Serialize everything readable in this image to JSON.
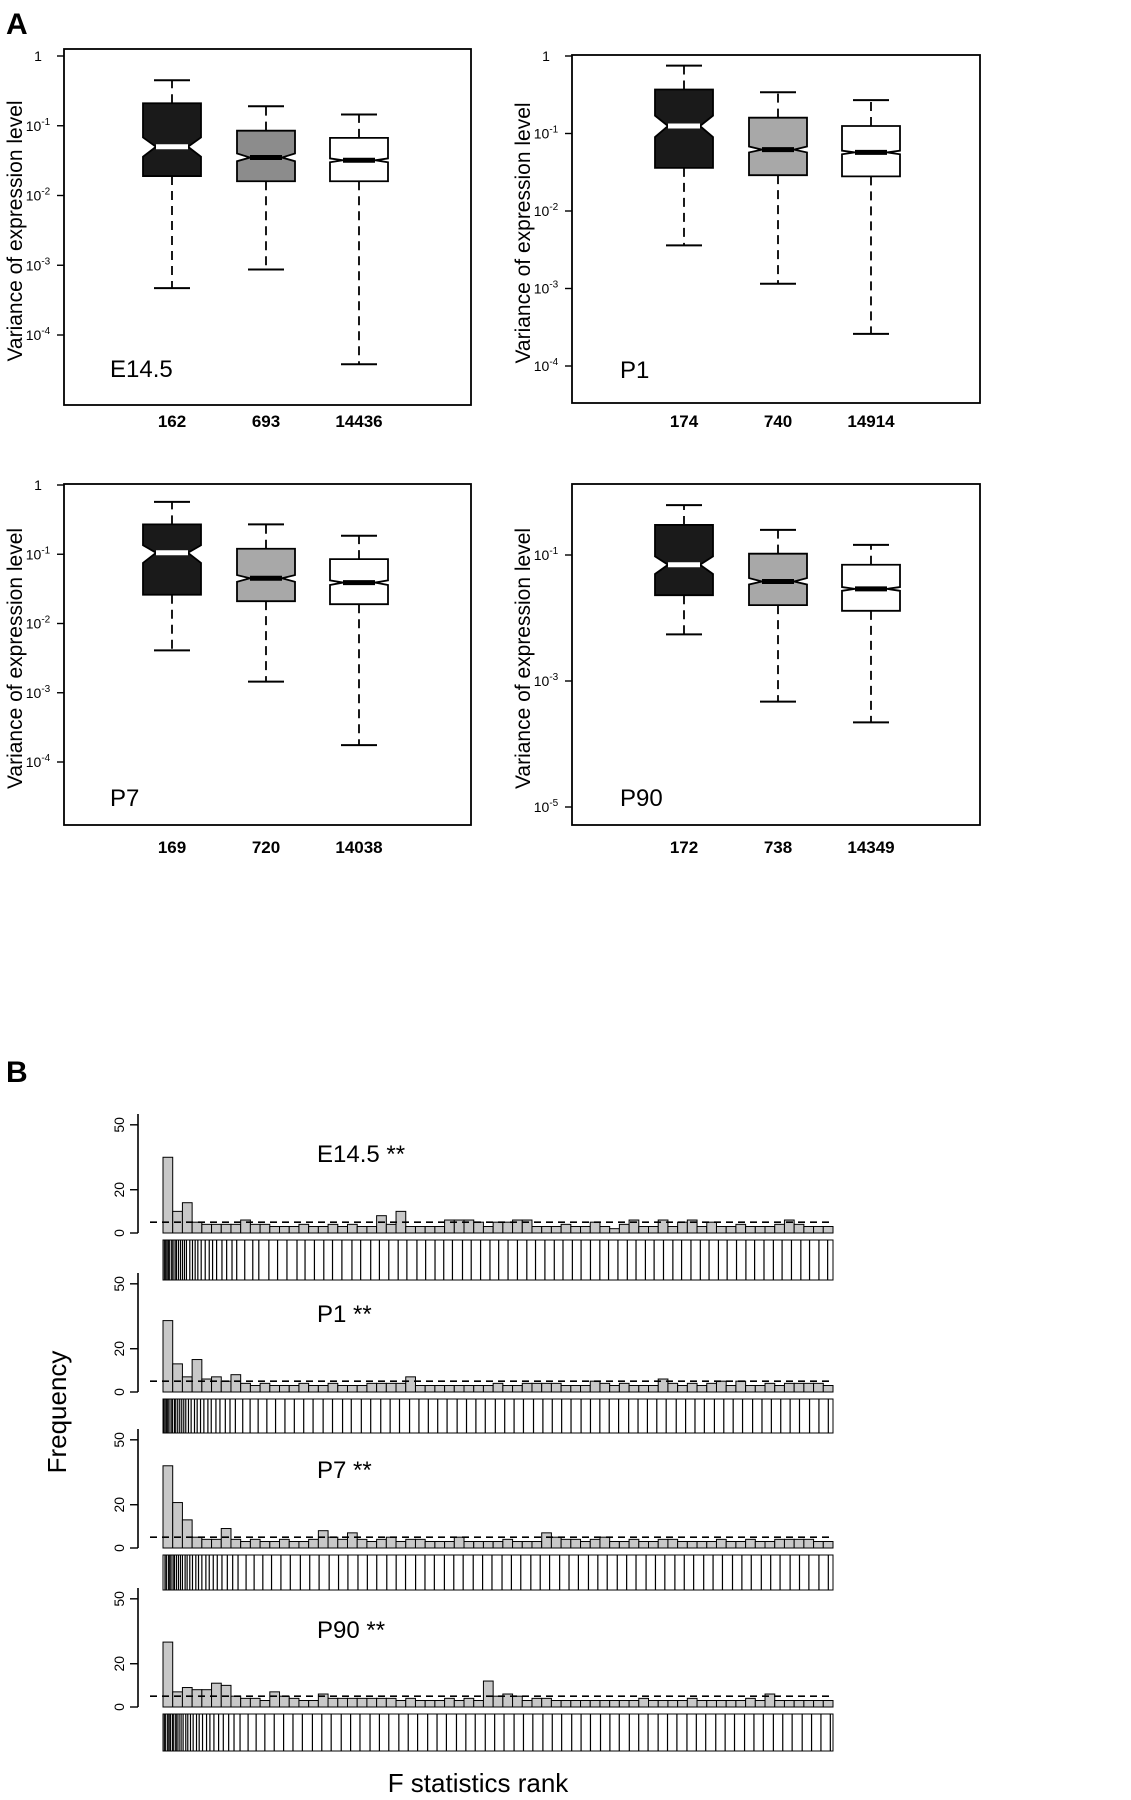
{
  "panel_labels": {
    "a": "A",
    "b": "B"
  },
  "colors": {
    "group1": "#1a1a1a",
    "group2": "#a8a8a8",
    "group3": "#ffffff",
    "hist_bar": "#c8c8c8"
  },
  "chart_data": [
    {
      "type": "boxplot",
      "panel": "A",
      "log_scale": true,
      "notched": true,
      "stage": "E14.5",
      "ylabel": "Variance of expression level",
      "ylim": [
        1e-05,
        1
      ],
      "yticks": [
        1,
        0.1,
        0.01,
        0.001,
        0.0001
      ],
      "ytick_labels": [
        {
          "base": "1",
          "exp": ""
        },
        {
          "base": "10",
          "exp": "-1"
        },
        {
          "base": "10",
          "exp": "-2"
        },
        {
          "base": "10",
          "exp": "-3"
        },
        {
          "base": "10",
          "exp": "-4"
        }
      ],
      "categories": [
        "162",
        "693",
        "14436"
      ],
      "boxes": [
        {
          "whislo": 0.00047,
          "q1": 0.019,
          "med": 0.05,
          "q3": 0.21,
          "whishi": 0.45,
          "notch_lo": 0.036,
          "notch_hi": 0.068,
          "color": "#1a1a1a"
        },
        {
          "whislo": 0.00087,
          "q1": 0.016,
          "med": 0.035,
          "q3": 0.085,
          "whishi": 0.19,
          "notch_lo": 0.031,
          "notch_hi": 0.04,
          "color": "#8c8c8c"
        },
        {
          "whislo": 3.8e-05,
          "q1": 0.016,
          "med": 0.032,
          "q3": 0.067,
          "whishi": 0.145,
          "notch_lo": 0.03,
          "notch_hi": 0.034,
          "color": "#ffffff"
        }
      ]
    },
    {
      "type": "boxplot",
      "panel": "A",
      "log_scale": true,
      "notched": true,
      "stage": "P1",
      "ylabel": "Variance of expression level",
      "ylim": [
        1e-05,
        1
      ],
      "yticks": [
        1,
        0.1,
        0.01,
        0.001,
        0.0001
      ],
      "ytick_labels": [
        {
          "base": "1",
          "exp": ""
        },
        {
          "base": "10",
          "exp": "-1"
        },
        {
          "base": "10",
          "exp": "-2"
        },
        {
          "base": "10",
          "exp": "-3"
        },
        {
          "base": "10",
          "exp": "-4"
        }
      ],
      "categories": [
        "174",
        "740",
        "14914"
      ],
      "boxes": [
        {
          "whislo": 0.0036,
          "q1": 0.036,
          "med": 0.125,
          "q3": 0.37,
          "whishi": 0.75,
          "notch_lo": 0.09,
          "notch_hi": 0.17,
          "color": "#1a1a1a"
        },
        {
          "whislo": 0.00115,
          "q1": 0.029,
          "med": 0.062,
          "q3": 0.16,
          "whishi": 0.34,
          "notch_lo": 0.057,
          "notch_hi": 0.068,
          "color": "#a8a8a8"
        },
        {
          "whislo": 0.00026,
          "q1": 0.028,
          "med": 0.057,
          "q3": 0.125,
          "whishi": 0.27,
          "notch_lo": 0.054,
          "notch_hi": 0.06,
          "color": "#ffffff"
        }
      ]
    },
    {
      "type": "boxplot",
      "panel": "A",
      "log_scale": true,
      "notched": true,
      "stage": "P7",
      "ylabel": "Variance of expression level",
      "ylim": [
        1e-05,
        1
      ],
      "yticks": [
        1,
        0.1,
        0.01,
        0.001,
        0.0001
      ],
      "ytick_labels": [
        {
          "base": "1",
          "exp": ""
        },
        {
          "base": "10",
          "exp": "-1"
        },
        {
          "base": "10",
          "exp": "-2"
        },
        {
          "base": "10",
          "exp": "-3"
        },
        {
          "base": "10",
          "exp": "-4"
        }
      ],
      "categories": [
        "169",
        "720",
        "14038"
      ],
      "boxes": [
        {
          "whislo": 0.0041,
          "q1": 0.026,
          "med": 0.105,
          "q3": 0.27,
          "whishi": 0.57,
          "notch_lo": 0.075,
          "notch_hi": 0.135,
          "color": "#1a1a1a"
        },
        {
          "whislo": 0.00145,
          "q1": 0.021,
          "med": 0.045,
          "q3": 0.12,
          "whishi": 0.27,
          "notch_lo": 0.04,
          "notch_hi": 0.05,
          "color": "#a8a8a8"
        },
        {
          "whislo": 0.000175,
          "q1": 0.019,
          "med": 0.039,
          "q3": 0.085,
          "whishi": 0.185,
          "notch_lo": 0.036,
          "notch_hi": 0.042,
          "color": "#ffffff"
        }
      ]
    },
    {
      "type": "boxplot",
      "panel": "A",
      "log_scale": true,
      "notched": true,
      "stage": "P90",
      "ylabel": "Variance of expression level",
      "ylim": [
        3e-06,
        1
      ],
      "yticks": [
        0.1,
        0.001,
        1e-05
      ],
      "ytick_labels": [
        {
          "base": "10",
          "exp": "-1"
        },
        {
          "base": "10",
          "exp": "-3"
        },
        {
          "base": "10",
          "exp": "-5"
        }
      ],
      "categories": [
        "172",
        "738",
        "14349"
      ],
      "boxes": [
        {
          "whislo": 0.0055,
          "q1": 0.023,
          "med": 0.07,
          "q3": 0.3,
          "whishi": 0.62,
          "notch_lo": 0.05,
          "notch_hi": 0.095,
          "color": "#1a1a1a"
        },
        {
          "whislo": 0.00047,
          "q1": 0.016,
          "med": 0.038,
          "q3": 0.105,
          "whishi": 0.25,
          "notch_lo": 0.034,
          "notch_hi": 0.043,
          "color": "#a8a8a8"
        },
        {
          "whislo": 0.00022,
          "q1": 0.013,
          "med": 0.029,
          "q3": 0.07,
          "whishi": 0.145,
          "notch_lo": 0.027,
          "notch_hi": 0.031,
          "color": "#ffffff"
        }
      ]
    },
    {
      "type": "bar",
      "panel": "B",
      "subtype": "rank-histogram-with-barcode",
      "ylabel": "Frequency",
      "xlabel": "F statistics rank",
      "ylim": [
        0,
        55
      ],
      "yticks": [
        0,
        20,
        50
      ],
      "expected_line": 5,
      "series": [
        {
          "name": "E14.5 **",
          "values": [
            35,
            10,
            14,
            5,
            4,
            4,
            4,
            4,
            6,
            4,
            4,
            3,
            3,
            3,
            4,
            3,
            3,
            4,
            3,
            4,
            3,
            3,
            8,
            4,
            10,
            3,
            3,
            3,
            3,
            6,
            6,
            6,
            5,
            3,
            5,
            5,
            6,
            6,
            3,
            3,
            3,
            4,
            3,
            3,
            5,
            3,
            2,
            4,
            6,
            3,
            3,
            6,
            3,
            5,
            6,
            3,
            5,
            3,
            3,
            4,
            3,
            3,
            3,
            4,
            6,
            4,
            3,
            3,
            3
          ],
          "barcode": [
            0.2,
            0.4,
            0.6,
            0.8,
            1.0,
            1.3,
            1.5,
            1.8,
            2.0,
            2.3,
            2.6,
            2.9,
            3.2,
            3.5,
            4.0,
            4.4,
            4.8,
            5.2,
            5.7,
            6.3,
            6.9,
            7.4,
            8.0,
            8.8,
            9.5,
            10.3,
            11.0,
            12.2,
            13.4,
            14.3,
            15.8,
            17.1,
            18.5,
            20.0,
            21.2,
            22.6,
            24.0,
            25.3,
            26.7,
            28.2,
            29.5,
            31.0,
            32.3,
            33.7,
            35.1,
            36.4,
            37.9,
            39.2,
            40.6,
            41.9,
            43.2,
            44.7,
            46.0,
            47.4,
            48.8,
            50.1,
            51.5,
            52.9,
            54.3,
            55.6,
            57.0,
            58.4,
            59.7,
            61.1,
            62.4,
            63.8,
            65.2,
            66.5,
            67.9,
            69.3,
            70.6,
            72.0,
            73.3,
            74.7,
            76.1,
            77.4,
            78.8,
            80.2,
            81.5,
            82.9,
            84.2,
            85.6,
            87.0,
            88.3,
            89.7,
            91.1,
            92.4,
            93.8,
            95.2,
            96.5,
            97.9,
            99.2
          ]
        },
        {
          "name": "P1 **",
          "values": [
            33,
            13,
            7,
            15,
            6,
            7,
            5,
            8,
            4,
            3,
            4,
            3,
            3,
            3,
            4,
            3,
            3,
            4,
            3,
            3,
            3,
            4,
            4,
            4,
            4,
            7,
            3,
            3,
            3,
            3,
            3,
            3,
            3,
            3,
            4,
            3,
            3,
            4,
            4,
            4,
            4,
            3,
            3,
            3,
            5,
            4,
            3,
            4,
            3,
            3,
            3,
            6,
            4,
            3,
            4,
            3,
            4,
            5,
            3,
            5,
            3,
            3,
            4,
            3,
            4,
            4,
            4,
            4,
            3
          ],
          "barcode": [
            0.1,
            0.3,
            0.5,
            0.7,
            0.9,
            1.2,
            1.4,
            1.7,
            1.9,
            2.2,
            2.5,
            2.8,
            3.1,
            3.4,
            3.8,
            4.2,
            4.7,
            5.1,
            5.6,
            6.1,
            6.7,
            7.2,
            7.9,
            8.5,
            9.3,
            10.0,
            10.8,
            11.9,
            13.0,
            14.2,
            15.5,
            16.8,
            18.2,
            19.6,
            21.0,
            22.4,
            23.9,
            25.3,
            26.8,
            28.1,
            29.6,
            31.0,
            32.5,
            33.9,
            35.3,
            36.8,
            38.2,
            39.6,
            41.0,
            42.4,
            43.9,
            45.3,
            46.7,
            48.1,
            49.6,
            51.0,
            52.4,
            53.8,
            55.3,
            56.7,
            58.1,
            59.5,
            60.9,
            62.4,
            63.8,
            65.2,
            66.6,
            68.0,
            69.5,
            70.9,
            72.3,
            73.7,
            75.1,
            76.6,
            78.0,
            79.4,
            80.8,
            82.3,
            83.7,
            85.1,
            86.5,
            88.0,
            89.4,
            90.8,
            92.2,
            93.6,
            95.0,
            96.5,
            97.9,
            99.3
          ]
        },
        {
          "name": "P7 **",
          "values": [
            38,
            21,
            13,
            5,
            4,
            4,
            9,
            4,
            3,
            4,
            3,
            3,
            4,
            3,
            3,
            4,
            8,
            5,
            4,
            7,
            4,
            3,
            4,
            5,
            3,
            4,
            4,
            3,
            3,
            3,
            5,
            3,
            3,
            3,
            3,
            4,
            3,
            3,
            3,
            7,
            5,
            4,
            4,
            3,
            4,
            5,
            3,
            3,
            4,
            3,
            3,
            4,
            4,
            3,
            3,
            3,
            3,
            4,
            3,
            3,
            4,
            3,
            3,
            4,
            4,
            4,
            4,
            3,
            3
          ],
          "barcode": [
            0.3,
            0.5,
            0.8,
            1.0,
            1.2,
            1.5,
            1.7,
            2.0,
            2.3,
            2.6,
            2.9,
            3.3,
            3.6,
            4.0,
            4.4,
            4.9,
            5.3,
            5.8,
            6.4,
            6.9,
            7.5,
            8.1,
            8.8,
            9.6,
            10.4,
            11.2,
            12.4,
            13.6,
            14.9,
            16.2,
            17.6,
            19.0,
            20.5,
            21.9,
            23.3,
            24.8,
            26.2,
            27.6,
            29.1,
            30.5,
            31.9,
            33.4,
            34.8,
            36.2,
            37.7,
            39.1,
            40.5,
            42.0,
            43.4,
            44.8,
            46.3,
            47.7,
            49.1,
            50.6,
            52.0,
            53.4,
            54.9,
            56.3,
            57.7,
            59.2,
            60.6,
            62.0,
            63.5,
            64.9,
            66.3,
            67.8,
            69.2,
            70.6,
            72.1,
            73.5,
            74.9,
            76.4,
            77.8,
            79.2,
            80.7,
            82.1,
            83.5,
            85.0,
            86.4,
            87.8,
            89.3,
            90.7,
            92.1,
            93.6,
            95.0,
            96.4,
            97.9,
            99.3
          ]
        },
        {
          "name": "P90 **",
          "values": [
            30,
            7,
            9,
            8,
            8,
            11,
            10,
            5,
            4,
            4,
            3,
            7,
            5,
            4,
            3,
            3,
            6,
            4,
            4,
            4,
            4,
            4,
            4,
            4,
            3,
            4,
            3,
            3,
            3,
            4,
            3,
            4,
            3,
            12,
            5,
            6,
            5,
            3,
            4,
            4,
            3,
            3,
            3,
            3,
            3,
            3,
            3,
            3,
            3,
            4,
            3,
            3,
            3,
            3,
            4,
            3,
            3,
            3,
            3,
            3,
            4,
            3,
            6,
            3,
            3,
            3,
            3,
            3,
            3
          ],
          "barcode": [
            0.2,
            0.4,
            0.7,
            0.9,
            1.1,
            1.4,
            1.6,
            1.9,
            2.1,
            2.4,
            2.7,
            3.0,
            3.4,
            3.7,
            4.1,
            4.5,
            5.0,
            5.4,
            5.9,
            6.5,
            7.0,
            7.6,
            8.3,
            9.0,
            9.8,
            10.6,
            11.5,
            12.7,
            13.9,
            15.2,
            16.6,
            18.0,
            19.4,
            20.8,
            22.3,
            23.7,
            25.1,
            26.6,
            28.0,
            29.4,
            30.9,
            32.3,
            33.7,
            35.2,
            36.6,
            38.0,
            39.5,
            40.9,
            42.3,
            43.8,
            45.2,
            46.6,
            48.1,
            49.5,
            50.9,
            52.4,
            53.8,
            55.2,
            56.7,
            58.1,
            59.5,
            61.0,
            62.4,
            63.8,
            65.3,
            66.7,
            68.1,
            69.6,
            71.0,
            72.4,
            73.9,
            75.3,
            76.7,
            78.2,
            79.6,
            81.0,
            82.5,
            83.9,
            85.3,
            86.8,
            88.2,
            89.6,
            91.1,
            92.5,
            93.9,
            95.4,
            96.8,
            98.2,
            99.6
          ]
        }
      ]
    }
  ]
}
